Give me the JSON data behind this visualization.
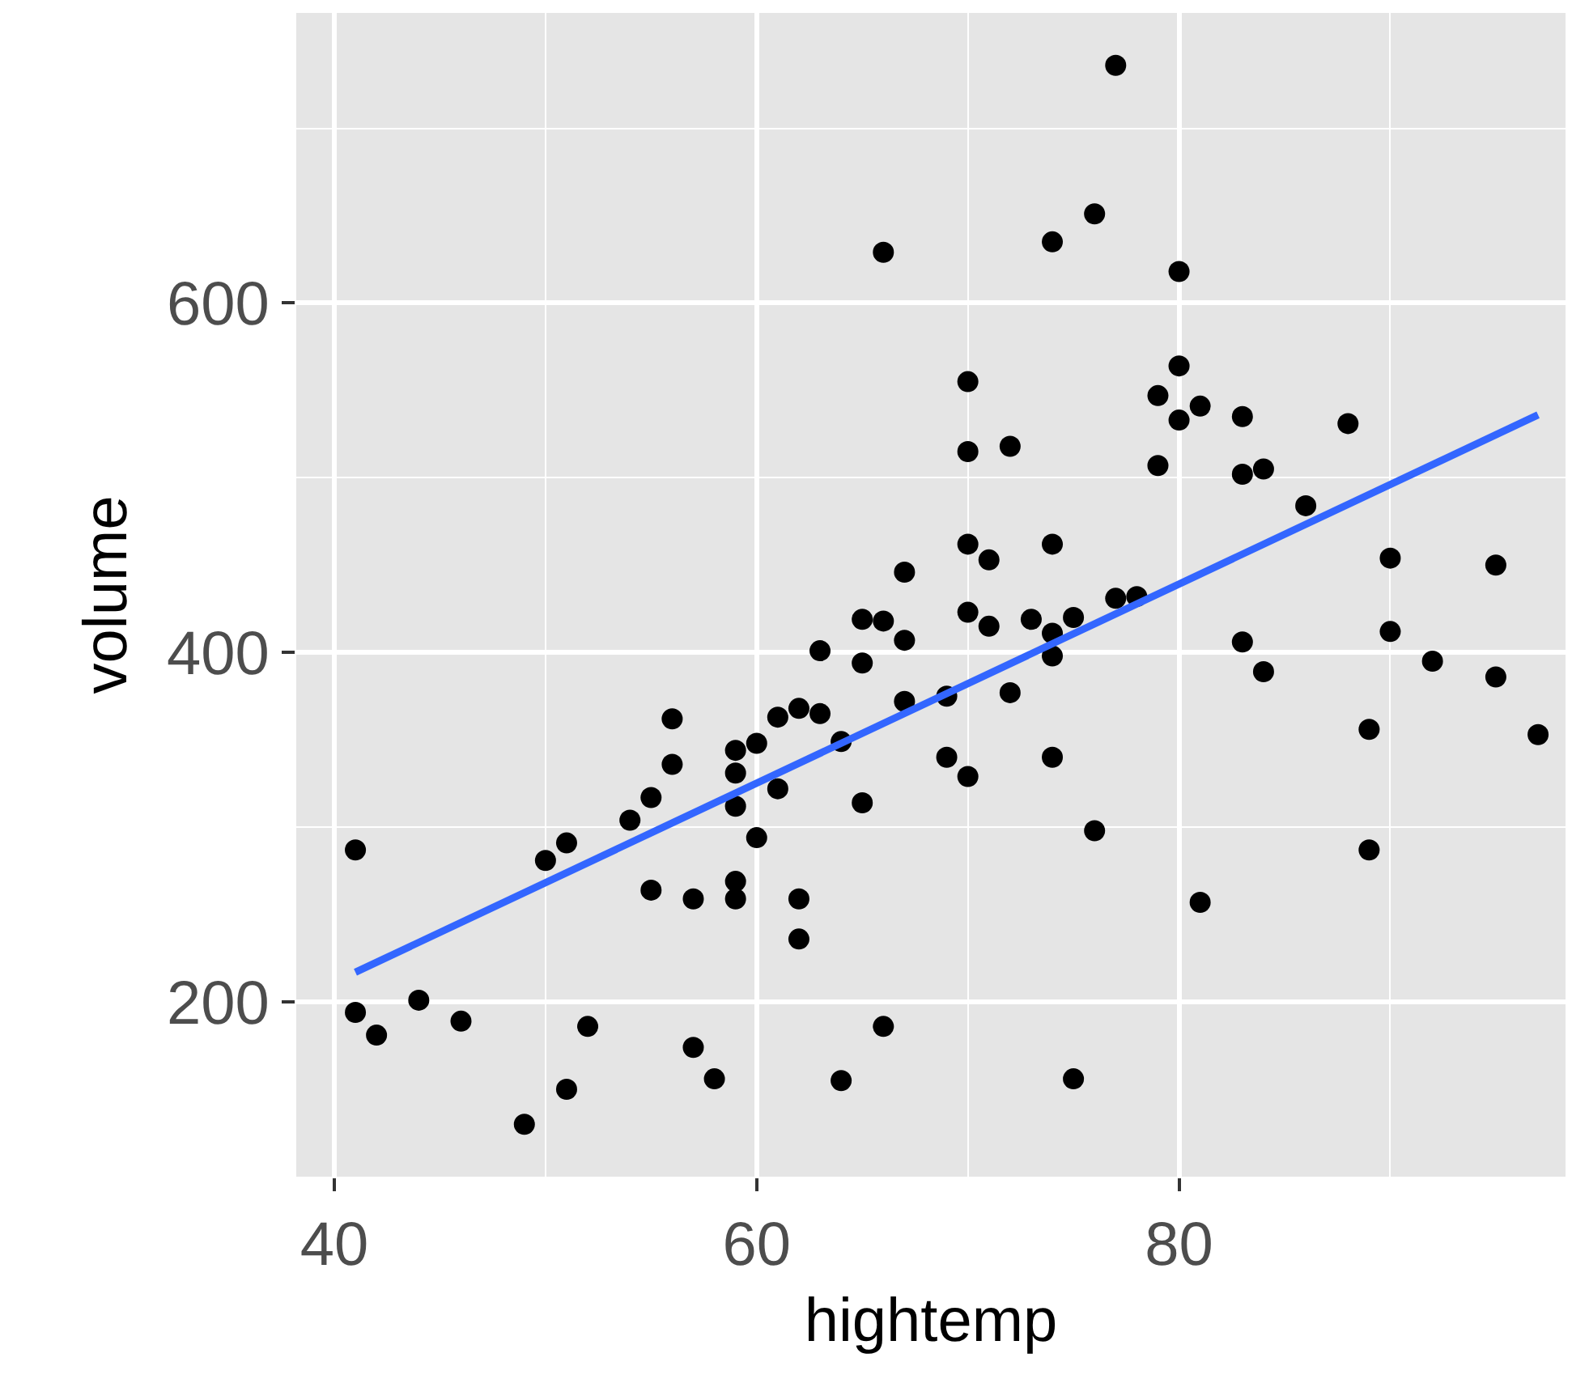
{
  "chart_data": {
    "type": "scatter",
    "xlabel": "hightemp",
    "ylabel": "volume",
    "xlim": [
      38.2,
      98.3
    ],
    "ylim": [
      100,
      766
    ],
    "xticks": [
      40,
      60,
      80
    ],
    "yticks": [
      200,
      400,
      600
    ],
    "grid": true,
    "series": [
      {
        "marker": "circle",
        "color": "#000000",
        "x": [
          41,
          41,
          42,
          44,
          46,
          49,
          50,
          51,
          51,
          52,
          54,
          55,
          55,
          56,
          56,
          57,
          57,
          58,
          59,
          59,
          59,
          59,
          59,
          60,
          60,
          61,
          61,
          62,
          62,
          62,
          63,
          63,
          64,
          64,
          65,
          65,
          65,
          66,
          66,
          66,
          67,
          67,
          67,
          69,
          69,
          70,
          70,
          70,
          70,
          70,
          71,
          71,
          72,
          72,
          73,
          74,
          74,
          74,
          74,
          74,
          75,
          75,
          76,
          76,
          77,
          77,
          78,
          79,
          79,
          80,
          80,
          80,
          81,
          81,
          83,
          83,
          83,
          84,
          84,
          86,
          88,
          89,
          89,
          90,
          90,
          92,
          95,
          95,
          97
        ],
        "values": [
          287,
          194,
          181,
          201,
          189,
          130,
          281,
          291,
          150,
          186,
          304,
          317,
          264,
          362,
          336,
          259,
          174,
          156,
          344,
          331,
          312,
          269,
          259,
          348,
          294,
          363,
          322,
          368,
          259,
          236,
          365,
          401,
          349,
          155,
          394,
          419,
          314,
          418,
          629,
          186,
          446,
          407,
          372,
          375,
          340,
          555,
          515,
          462,
          423,
          329,
          453,
          415,
          518,
          377,
          419,
          635,
          462,
          411,
          398,
          340,
          420,
          156,
          651,
          298,
          431,
          736,
          432,
          547,
          507,
          618,
          564,
          533,
          541,
          257,
          535,
          502,
          406,
          505,
          389,
          484,
          531,
          356,
          287,
          454,
          412,
          395,
          450,
          386,
          353
        ]
      },
      {
        "type": "line",
        "color": "#3366ff",
        "x": [
          41,
          97
        ],
        "values": [
          217,
          536
        ],
        "line_style": "solid"
      }
    ]
  }
}
